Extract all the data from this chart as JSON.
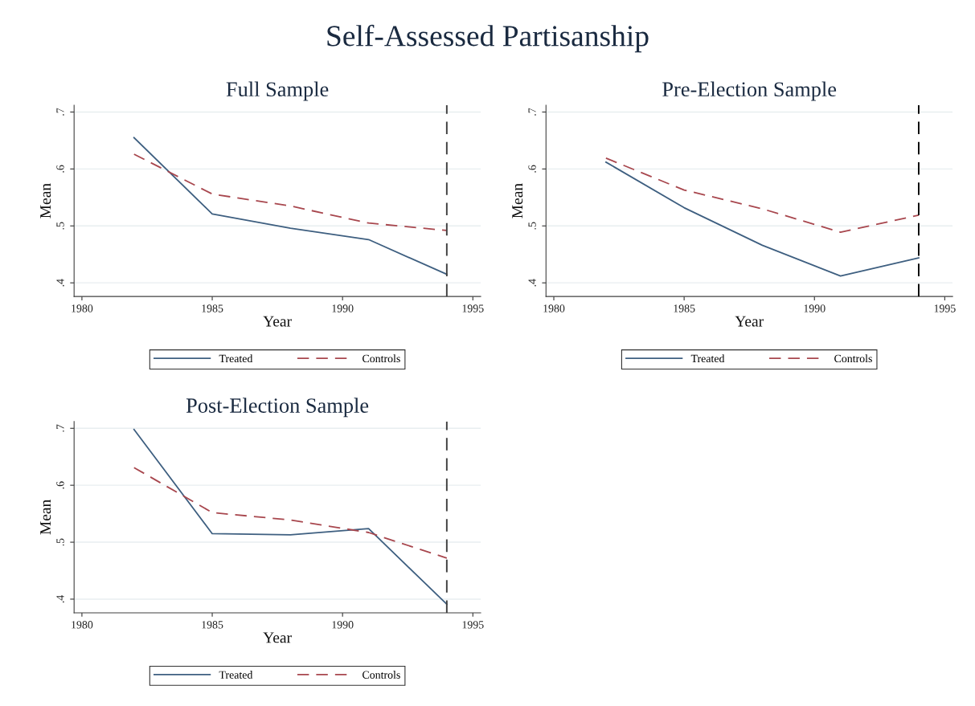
{
  "chart_data": [
    {
      "type": "line",
      "title": "Full Sample",
      "xlabel": "Year",
      "ylabel": "Mean",
      "annotations": [
        "Self-Assessed Partisanship"
      ],
      "x": [
        1982,
        1985,
        1988,
        1991,
        1994
      ],
      "series": [
        {
          "name": "Treated",
          "color": "#3e5f80",
          "line_style": "solid",
          "values": [
            0.655,
            0.521,
            0.496,
            0.476,
            0.415
          ]
        },
        {
          "name": "Controls",
          "color": "#a8474e",
          "line_style": "dashed",
          "values": [
            0.626,
            0.556,
            0.535,
            0.505,
            0.492
          ]
        }
      ],
      "xlim": [
        1979.7,
        1995.3
      ],
      "xticks": [
        1980,
        1985,
        1990,
        1995
      ],
      "ylim": [
        0.376,
        0.712
      ],
      "yticks": [
        {
          "value": 0.4,
          "label": ".4"
        },
        {
          "value": 0.5,
          "label": ".5"
        },
        {
          "value": 0.6,
          "label": ".6"
        },
        {
          "value": 0.7,
          "label": ".7"
        }
      ],
      "ref_lines": [
        {
          "axis": "x",
          "value": 1994,
          "color": "#404040",
          "line_style": "dashed"
        }
      ],
      "grid": "y",
      "legend": "bottom",
      "marker": "none"
    },
    {
      "type": "line",
      "title": "Pre-Election Sample",
      "xlabel": "Year",
      "ylabel": "Mean",
      "x": [
        1982,
        1985,
        1988,
        1991,
        1994
      ],
      "series": [
        {
          "name": "Treated",
          "color": "#3e5f80",
          "line_style": "solid",
          "values": [
            0.612,
            0.532,
            0.466,
            0.412,
            0.444
          ]
        },
        {
          "name": "Controls",
          "color": "#a8474e",
          "line_style": "dashed",
          "values": [
            0.619,
            0.563,
            0.53,
            0.489,
            0.519
          ]
        }
      ],
      "xlim": [
        1979.7,
        1995.3
      ],
      "xticks": [
        1980,
        1985,
        1990,
        1995
      ],
      "ylim": [
        0.376,
        0.712
      ],
      "yticks": [
        {
          "value": 0.4,
          "label": ".4"
        },
        {
          "value": 0.5,
          "label": ".5"
        },
        {
          "value": 0.6,
          "label": ".6"
        },
        {
          "value": 0.7,
          "label": ".7"
        }
      ],
      "ref_lines": [
        {
          "axis": "x",
          "value": 1994,
          "color": "#000000",
          "line_style": "dashed"
        }
      ],
      "grid": "y",
      "legend": "bottom",
      "marker": "none"
    },
    {
      "type": "line",
      "title": "Post-Election Sample",
      "xlabel": "Year",
      "ylabel": "Mean",
      "x": [
        1982,
        1985,
        1988,
        1991,
        1994
      ],
      "series": [
        {
          "name": "Treated",
          "color": "#3e5f80",
          "line_style": "solid",
          "values": [
            0.698,
            0.515,
            0.513,
            0.524,
            0.391
          ]
        },
        {
          "name": "Controls",
          "color": "#a8474e",
          "line_style": "dashed",
          "values": [
            0.631,
            0.552,
            0.539,
            0.517,
            0.472
          ]
        }
      ],
      "xlim": [
        1979.7,
        1995.3
      ],
      "xticks": [
        1980,
        1985,
        1990,
        1995
      ],
      "ylim": [
        0.376,
        0.712
      ],
      "yticks": [
        {
          "value": 0.4,
          "label": ".4"
        },
        {
          "value": 0.5,
          "label": ".5"
        },
        {
          "value": 0.6,
          "label": ".6"
        },
        {
          "value": 0.7,
          "label": ".7"
        }
      ],
      "ref_lines": [
        {
          "axis": "x",
          "value": 1994,
          "color": "#404040",
          "line_style": "dashed"
        }
      ],
      "grid": "y",
      "legend": "bottom",
      "marker": "none"
    }
  ]
}
